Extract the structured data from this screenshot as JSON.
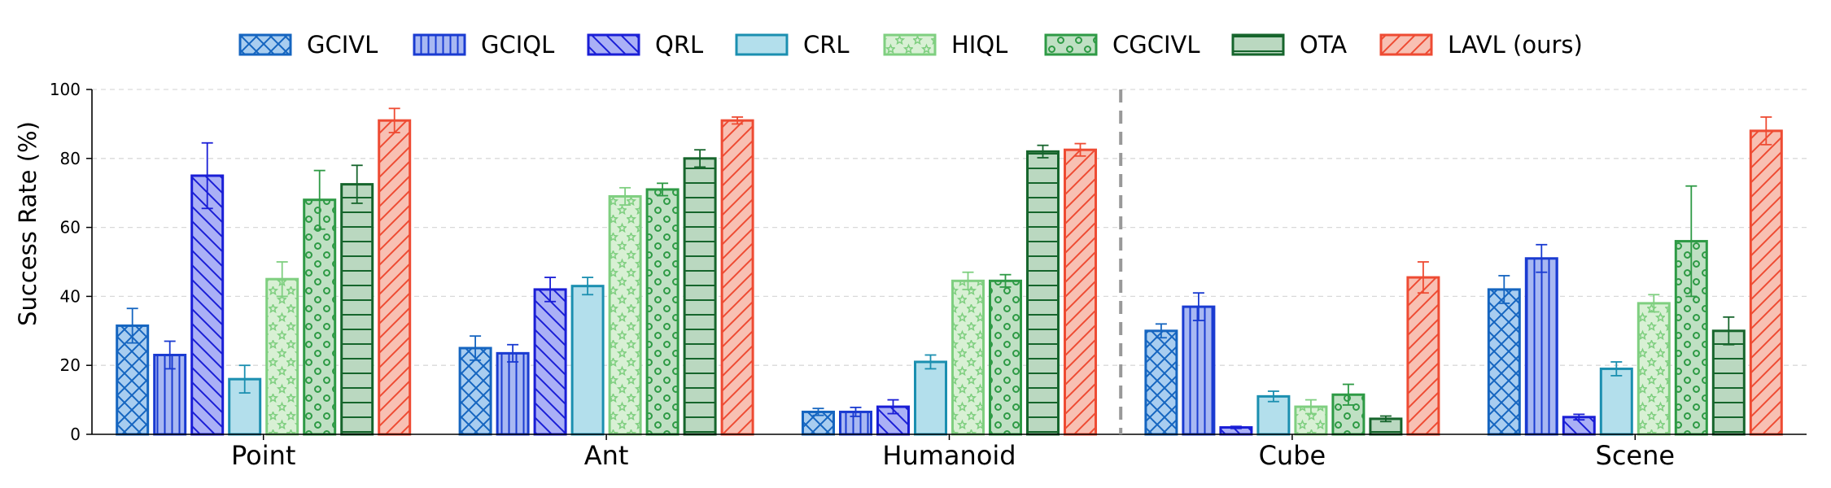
{
  "chart_data": {
    "type": "bar",
    "title": "",
    "xlabel": "",
    "ylabel": "Success Rate (%)",
    "ylim": [
      0,
      100
    ],
    "yticks": [
      "0",
      "20",
      "40",
      "60",
      "80",
      "100"
    ],
    "grid": "horizontal dashed",
    "legend_placement": "top-center",
    "categories": [
      "Point",
      "Ant",
      "Humanoid",
      "Cube",
      "Scene"
    ],
    "separator_after_category": 2,
    "series": [
      {
        "name": "GCIVL",
        "values": [
          31.5,
          25.0,
          6.5,
          30.0,
          42.0
        ],
        "errors": [
          5.0,
          3.5,
          1.0,
          2.0,
          4.0
        ],
        "edge": "#1565c0",
        "fill": "#a8cdf0",
        "hatch": "crosshatch"
      },
      {
        "name": "GCIQL",
        "values": [
          23.0,
          23.5,
          6.5,
          37.0,
          51.0
        ],
        "errors": [
          4.0,
          2.5,
          1.3,
          4.0,
          4.0
        ],
        "edge": "#1a3bd1",
        "fill": "#a8b8f2",
        "hatch": "vertical"
      },
      {
        "name": "QRL",
        "values": [
          75.0,
          42.0,
          8.0,
          2.0,
          5.0
        ],
        "errors": [
          9.5,
          3.5,
          2.0,
          0.3,
          0.8
        ],
        "edge": "#1a1ed6",
        "fill": "#aab0f6",
        "hatch": "backslash"
      },
      {
        "name": "CRL",
        "values": [
          16.0,
          43.0,
          21.0,
          11.0,
          19.0
        ],
        "errors": [
          4.0,
          2.5,
          2.0,
          1.5,
          2.0
        ],
        "edge": "#1b8fb0",
        "fill": "#b3dfec",
        "hatch": "none"
      },
      {
        "name": "HIQL",
        "values": [
          45.0,
          69.0,
          44.5,
          8.0,
          38.0
        ],
        "errors": [
          5.0,
          2.5,
          2.5,
          2.0,
          2.5
        ],
        "edge": "#7fcf80",
        "fill": "#d8f0d4",
        "hatch": "stars"
      },
      {
        "name": "CGCIVL",
        "values": [
          68.0,
          71.0,
          44.5,
          11.5,
          56.0
        ],
        "errors": [
          8.5,
          1.8,
          1.8,
          3.0,
          16.0
        ],
        "edge": "#2e9a45",
        "fill": "#bfe0c3",
        "hatch": "circles"
      },
      {
        "name": "OTA",
        "values": [
          72.5,
          80.0,
          82.0,
          4.5,
          30.0
        ],
        "errors": [
          5.5,
          2.5,
          1.8,
          0.8,
          4.0
        ],
        "edge": "#16652c",
        "fill": "#bad8c0",
        "hatch": "horizontal"
      },
      {
        "name": "LAVL (ours)",
        "values": [
          91.0,
          91.0,
          82.5,
          45.5,
          88.0
        ],
        "errors": [
          3.5,
          1.0,
          1.8,
          4.5,
          4.0
        ],
        "edge": "#ee4b33",
        "fill": "#f8c0b3",
        "hatch": "slash"
      }
    ]
  }
}
